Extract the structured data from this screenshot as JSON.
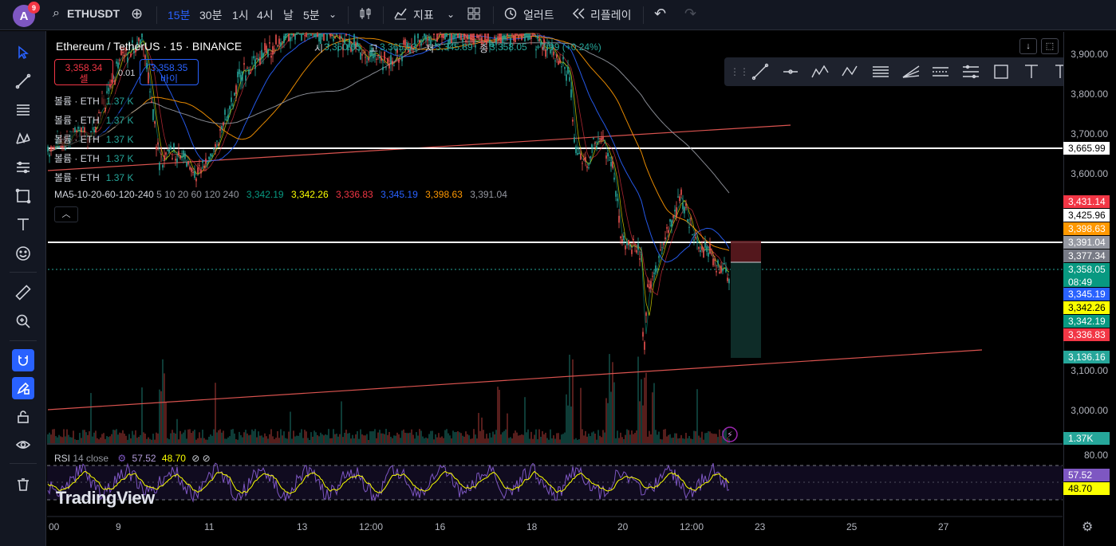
{
  "topbar": {
    "avatar_letter": "A",
    "notification_count": "9",
    "symbol": "ETHUSDT",
    "intervals": [
      "15분",
      "30분",
      "1시",
      "4시",
      "날",
      "5분"
    ],
    "active_interval": "15분",
    "indicators_label": "지표",
    "alerts_label": "얼러트",
    "replay_label": "리플레이"
  },
  "legend": {
    "title": "Ethereum / TetherUS · 15 · BINANCE",
    "open_label": "시",
    "open": "3,350.05",
    "high_label": "고",
    "high": "3,365.53",
    "low_label": "저",
    "low": "3,345.89",
    "close_label": "종",
    "close": "3,358.05",
    "change": "+7.99 (+0.24%)",
    "sell_price": "3,358.34",
    "sell_label": "셀",
    "spread": "0.01",
    "buy_price": "3,358.35",
    "buy_label": "바이",
    "volume_rows": [
      {
        "label": "볼륨 · ETH",
        "value": "1.37 K"
      },
      {
        "label": "볼륨 · ETH",
        "value": "1.37 K"
      },
      {
        "label": "볼륨 · ETH",
        "value": "1.37 K"
      },
      {
        "label": "볼륨 · ETH",
        "value": "1.37 K"
      },
      {
        "label": "볼륨 · ETH",
        "value": "1.37 K"
      }
    ],
    "ma_label": "MA5-10-20-60-120-240",
    "ma_params": "5 10 20 60 120 240",
    "ma_values": [
      "3,342.19",
      "3,342.26",
      "3,336.83",
      "3,345.19",
      "3,398.63",
      "3,391.04"
    ]
  },
  "colors": {
    "ma_colors": [
      "#089981",
      "#fbff00",
      "#f23645",
      "#2962ff",
      "#ff9800",
      "#9598a1"
    ],
    "up": "#26a69a",
    "down": "#ef5350"
  },
  "price_axis": {
    "ticks": [
      "3,900.00",
      "3,800.00",
      "3,700.00",
      "3,600.00",
      "3,100.00",
      "3,000.00"
    ],
    "labels": [
      {
        "text": "3,665.99",
        "bg": "#ffffff",
        "fg": "#000000"
      },
      {
        "text": "3,431.14",
        "bg": "#f23645",
        "fg": "#ffffff"
      },
      {
        "text": "3,425.96",
        "bg": "#ffffff",
        "fg": "#000000"
      },
      {
        "text": "3,398.63",
        "bg": "#ff9800",
        "fg": "#ffffff"
      },
      {
        "text": "3,391.04",
        "bg": "#9598a1",
        "fg": "#ffffff"
      },
      {
        "text": "3,377.34",
        "bg": "#787b86",
        "fg": "#ffffff"
      },
      {
        "text": "3,358.05",
        "bg": "#089981",
        "fg": "#ffffff"
      },
      {
        "text": "3,345.19",
        "bg": "#2962ff",
        "fg": "#ffffff"
      },
      {
        "text": "3,342.26",
        "bg": "#fbff00",
        "fg": "#000000"
      },
      {
        "text": "3,342.19",
        "bg": "#089981",
        "fg": "#ffffff"
      },
      {
        "text": "3,336.83",
        "bg": "#f23645",
        "fg": "#ffffff"
      },
      {
        "text": "3,136.16",
        "bg": "#26a69a",
        "fg": "#ffffff"
      },
      {
        "text": "1.37K",
        "bg": "#26a69a",
        "fg": "#ffffff"
      }
    ],
    "countdown": "08:49"
  },
  "rsi": {
    "label": "RSI",
    "params": "14 close",
    "value": "57.52",
    "ma_value": "48.70",
    "level_top": "80.00"
  },
  "time_axis": [
    "00",
    "9",
    "11",
    "13",
    "12:00",
    "16",
    "18",
    "20",
    "12:00",
    "23",
    "25",
    "27"
  ],
  "watermark": "TradingView"
}
